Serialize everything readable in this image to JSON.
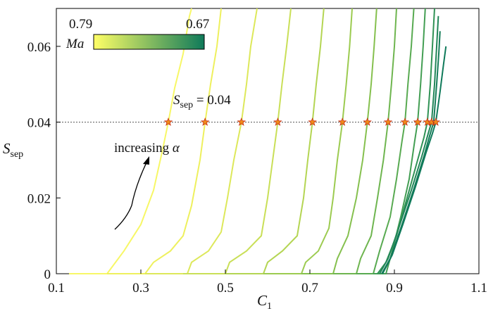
{
  "chart_data": {
    "type": "line",
    "xlabel": "C",
    "xlabel_sub": "1",
    "ylabel": "S",
    "ylabel_sub": "sep",
    "xlim": [
      0.1,
      1.1
    ],
    "ylim": [
      0,
      0.07
    ],
    "xticks": [
      0.1,
      0.3,
      0.5,
      0.7,
      0.9,
      1.1
    ],
    "xtick_labels": [
      "0.1",
      "0.3",
      "0.5",
      "0.7",
      "0.9",
      "1.1"
    ],
    "yticks": [
      0,
      0.02,
      0.04,
      0.06
    ],
    "ytick_labels": [
      "0",
      "0.02",
      "0.04",
      "0.06"
    ],
    "reference_line": {
      "y": 0.04,
      "style": "dotted",
      "label_main": "S",
      "label_sub": "sep",
      "label_rest": " = 0.04"
    },
    "colorbar": {
      "label": "Ma",
      "max_label": "0.79",
      "min_label": "0.67",
      "color_start": "#ffff66",
      "color_end": "#0f7a5a",
      "placement": "top-left"
    },
    "annotation": {
      "text": "increasing ",
      "symbol": "α"
    },
    "marker_style": {
      "shape": "star",
      "fill": "#f08c1a",
      "stroke": "#c83214"
    },
    "series": [
      {
        "color": "#f7f766",
        "points": [
          [
            0.13,
            0
          ],
          [
            0.22,
            0
          ],
          [
            0.26,
            0.006
          ],
          [
            0.3,
            0.013
          ],
          [
            0.33,
            0.022
          ],
          [
            0.35,
            0.032
          ],
          [
            0.365,
            0.04
          ],
          [
            0.38,
            0.049
          ],
          [
            0.4,
            0.058
          ],
          [
            0.415,
            0.068
          ],
          [
            0.42,
            0.07
          ]
        ]
      },
      {
        "color": "#eef05d",
        "points": [
          [
            0.22,
            0
          ],
          [
            0.31,
            0
          ],
          [
            0.33,
            0.003
          ],
          [
            0.37,
            0.006
          ],
          [
            0.4,
            0.01
          ],
          [
            0.42,
            0.018
          ],
          [
            0.44,
            0.03
          ],
          [
            0.452,
            0.04
          ],
          [
            0.465,
            0.05
          ],
          [
            0.48,
            0.06
          ],
          [
            0.49,
            0.07
          ]
        ]
      },
      {
        "color": "#dde85a",
        "points": [
          [
            0.31,
            0
          ],
          [
            0.41,
            0
          ],
          [
            0.42,
            0.003
          ],
          [
            0.46,
            0.006
          ],
          [
            0.49,
            0.011
          ],
          [
            0.505,
            0.02
          ],
          [
            0.52,
            0.03
          ],
          [
            0.538,
            0.04
          ],
          [
            0.55,
            0.05
          ],
          [
            0.56,
            0.06
          ],
          [
            0.575,
            0.07
          ]
        ]
      },
      {
        "color": "#c9df57",
        "points": [
          [
            0.4,
            0
          ],
          [
            0.5,
            0
          ],
          [
            0.51,
            0.003
          ],
          [
            0.55,
            0.006
          ],
          [
            0.585,
            0.01
          ],
          [
            0.6,
            0.02
          ],
          [
            0.612,
            0.03
          ],
          [
            0.624,
            0.04
          ],
          [
            0.634,
            0.05
          ],
          [
            0.645,
            0.06
          ],
          [
            0.655,
            0.07
          ]
        ]
      },
      {
        "color": "#b4d553",
        "points": [
          [
            0.5,
            0
          ],
          [
            0.59,
            0
          ],
          [
            0.6,
            0.003
          ],
          [
            0.635,
            0.006
          ],
          [
            0.67,
            0.01
          ],
          [
            0.685,
            0.02
          ],
          [
            0.695,
            0.03
          ],
          [
            0.706,
            0.04
          ],
          [
            0.715,
            0.05
          ],
          [
            0.725,
            0.06
          ],
          [
            0.733,
            0.07
          ]
        ]
      },
      {
        "color": "#9ccb50",
        "points": [
          [
            0.59,
            0
          ],
          [
            0.68,
            0
          ],
          [
            0.69,
            0.003
          ],
          [
            0.72,
            0.006
          ],
          [
            0.745,
            0.012
          ],
          [
            0.755,
            0.02
          ],
          [
            0.765,
            0.03
          ],
          [
            0.777,
            0.04
          ],
          [
            0.786,
            0.05
          ],
          [
            0.794,
            0.06
          ],
          [
            0.8,
            0.07
          ]
        ]
      },
      {
        "color": "#85c04e",
        "points": [
          [
            0.68,
            0
          ],
          [
            0.755,
            0
          ],
          [
            0.765,
            0.004
          ],
          [
            0.79,
            0.01
          ],
          [
            0.81,
            0.02
          ],
          [
            0.825,
            0.03
          ],
          [
            0.836,
            0.04
          ],
          [
            0.845,
            0.05
          ],
          [
            0.852,
            0.06
          ],
          [
            0.858,
            0.07
          ]
        ]
      },
      {
        "color": "#6eb54f",
        "points": [
          [
            0.755,
            0
          ],
          [
            0.81,
            0
          ],
          [
            0.82,
            0.004
          ],
          [
            0.845,
            0.01
          ],
          [
            0.86,
            0.02
          ],
          [
            0.874,
            0.03
          ],
          [
            0.885,
            0.04
          ],
          [
            0.893,
            0.05
          ],
          [
            0.9,
            0.06
          ],
          [
            0.905,
            0.07
          ]
        ]
      },
      {
        "color": "#58aa51",
        "points": [
          [
            0.81,
            0
          ],
          [
            0.85,
            0
          ],
          [
            0.865,
            0.006
          ],
          [
            0.89,
            0.015
          ],
          [
            0.905,
            0.025
          ],
          [
            0.918,
            0.035
          ],
          [
            0.925,
            0.04
          ],
          [
            0.932,
            0.05
          ],
          [
            0.94,
            0.06
          ],
          [
            0.946,
            0.07
          ]
        ]
      },
      {
        "color": "#439e53",
        "points": [
          [
            0.85,
            0
          ],
          [
            0.88,
            0
          ],
          [
            0.895,
            0.006
          ],
          [
            0.915,
            0.015
          ],
          [
            0.935,
            0.025
          ],
          [
            0.948,
            0.035
          ],
          [
            0.955,
            0.04
          ],
          [
            0.962,
            0.05
          ],
          [
            0.968,
            0.06
          ],
          [
            0.973,
            0.07
          ]
        ]
      },
      {
        "color": "#309255",
        "points": [
          [
            0.86,
            0
          ],
          [
            0.88,
            0.003
          ],
          [
            0.905,
            0.01
          ],
          [
            0.93,
            0.02
          ],
          [
            0.955,
            0.03
          ],
          [
            0.97,
            0.036
          ],
          [
            0.978,
            0.04
          ],
          [
            0.985,
            0.05
          ],
          [
            0.99,
            0.06
          ],
          [
            0.995,
            0.07
          ]
        ]
      },
      {
        "color": "#218658",
        "points": [
          [
            0.865,
            0
          ],
          [
            0.885,
            0.004
          ],
          [
            0.91,
            0.012
          ],
          [
            0.94,
            0.022
          ],
          [
            0.965,
            0.031
          ],
          [
            0.98,
            0.037
          ],
          [
            0.988,
            0.04
          ],
          [
            0.995,
            0.05
          ],
          [
            1.0,
            0.06
          ],
          [
            1.004,
            0.068
          ]
        ]
      },
      {
        "color": "#167d59",
        "points": [
          [
            0.87,
            0
          ],
          [
            0.89,
            0.004
          ],
          [
            0.915,
            0.012
          ],
          [
            0.945,
            0.022
          ],
          [
            0.97,
            0.031
          ],
          [
            0.985,
            0.037
          ],
          [
            0.993,
            0.04
          ],
          [
            1.0,
            0.05
          ],
          [
            1.005,
            0.058
          ],
          [
            1.008,
            0.064
          ]
        ]
      },
      {
        "color": "#0f7a5a",
        "points": [
          [
            0.872,
            0
          ],
          [
            0.895,
            0.005
          ],
          [
            0.92,
            0.013
          ],
          [
            0.95,
            0.023
          ],
          [
            0.975,
            0.032
          ],
          [
            0.99,
            0.037
          ],
          [
            0.998,
            0.04
          ],
          [
            1.008,
            0.048
          ],
          [
            1.016,
            0.055
          ],
          [
            1.022,
            0.06
          ]
        ]
      }
    ],
    "markers_y": 0.04,
    "markers_x": [
      0.365,
      0.452,
      0.538,
      0.624,
      0.706,
      0.777,
      0.836,
      0.885,
      0.925,
      0.955,
      0.978,
      0.988,
      0.998
    ]
  }
}
